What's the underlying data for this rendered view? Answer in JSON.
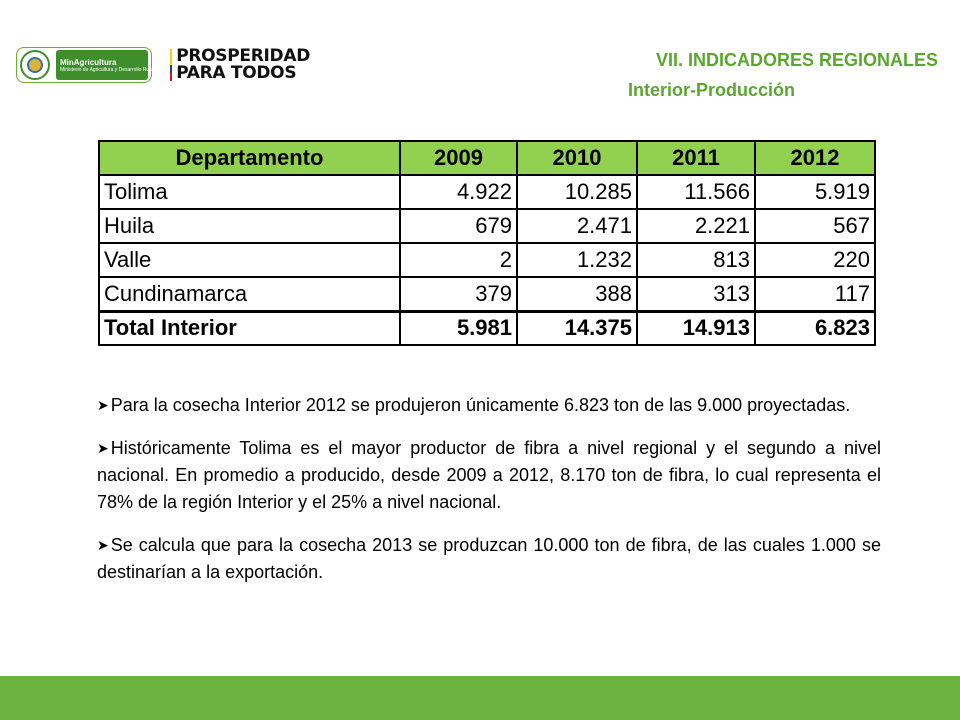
{
  "logos": {
    "ministry_title": "MinAgricultura",
    "ministry_subtitle": "Ministerio de Agricultura y Desarrollo Rural",
    "campaign_line1": "PROSPERIDAD",
    "campaign_line2": "PARA TODOS"
  },
  "header": {
    "title": "VII. INDICADORES REGIONALES",
    "subtitle": "Interior-Producción"
  },
  "table": {
    "headers": [
      "Departamento",
      "2009",
      "2010",
      "2011",
      "2012"
    ],
    "rows": [
      [
        "Tolima",
        "4.922",
        "10.285",
        "11.566",
        "5.919"
      ],
      [
        "Huila",
        "679",
        "2.471",
        "2.221",
        "567"
      ],
      [
        "Valle",
        "2",
        "1.232",
        "813",
        "220"
      ],
      [
        "Cundinamarca",
        "379",
        "388",
        "313",
        "117"
      ]
    ],
    "total": [
      "Total Interior",
      "5.981",
      "14.375",
      "14.913",
      "6.823"
    ]
  },
  "bullets": [
    "Para la cosecha Interior 2012 se produjeron únicamente 6.823 ton de las 9.000 proyectadas.",
    "Históricamente Tolima es el mayor productor de fibra a nivel regional y el segundo a nivel nacional. En promedio a producido, desde 2009 a 2012, 8.170 ton de fibra, lo cual representa el 78% de la región Interior y el 25% a nivel nacional.",
    "Se calcula que para la cosecha 2013 se produzcan 10.000 ton de fibra, de las cuales 1.000 se destinarían a la exportación."
  ],
  "colors": {
    "accent_green": "#5aa62e",
    "header_fill": "#92d050",
    "footer_bar": "#6db33f"
  },
  "icons": {
    "bullet": "arrow-bullet-icon",
    "seal": "national-seal-icon",
    "flag": "colombia-flag-icon"
  }
}
